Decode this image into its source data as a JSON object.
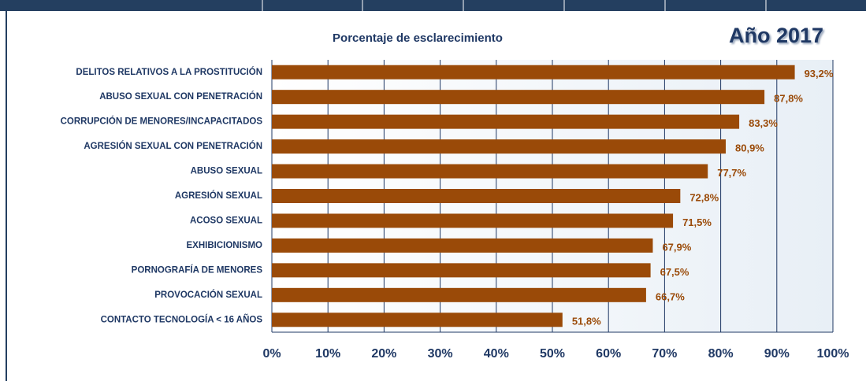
{
  "chart_data": {
    "type": "bar",
    "orientation": "horizontal",
    "title": "Porcentaje de esclarecimiento",
    "subtitle": "Año 2017",
    "categories": [
      "DELITOS RELATIVOS A LA PROSTITUCIÓN",
      "ABUSO SEXUAL CON PENETRACIÓN",
      "CORRUPCIÓN DE MENORES/INCAPACITADOS",
      "AGRESIÓN SEXUAL CON PENETRACIÓN",
      "ABUSO SEXUAL",
      "AGRESIÓN SEXUAL",
      "ACOSO SEXUAL",
      "EXHIBICIONISMO",
      "PORNOGRAFÍA DE MENORES",
      "PROVOCACIÓN SEXUAL",
      "CONTACTO TECNOLOGÍA < 16 AÑOS"
    ],
    "values": [
      93.2,
      87.8,
      83.3,
      80.9,
      77.7,
      72.8,
      71.5,
      67.9,
      67.5,
      66.7,
      51.8
    ],
    "value_labels": [
      "93,2%",
      "87,8%",
      "83,3%",
      "80,9%",
      "77,7%",
      "72,8%",
      "71,5%",
      "67,9%",
      "67,5%",
      "66,7%",
      "51,8%"
    ],
    "color": "#9a4a08",
    "xlim": [
      0,
      100
    ],
    "xticks": [
      {
        "value": 0,
        "label": "0%"
      },
      {
        "value": 10,
        "label": "10%"
      },
      {
        "value": 20,
        "label": "20%"
      },
      {
        "value": 30,
        "label": "30%"
      },
      {
        "value": 40,
        "label": "40%"
      },
      {
        "value": 50,
        "label": "50%"
      },
      {
        "value": 60,
        "label": "60%"
      },
      {
        "value": 70,
        "label": "70%"
      },
      {
        "value": 80,
        "label": "80%"
      },
      {
        "value": 90,
        "label": "90%"
      },
      {
        "value": 100,
        "label": "100%"
      }
    ],
    "grid": true
  }
}
